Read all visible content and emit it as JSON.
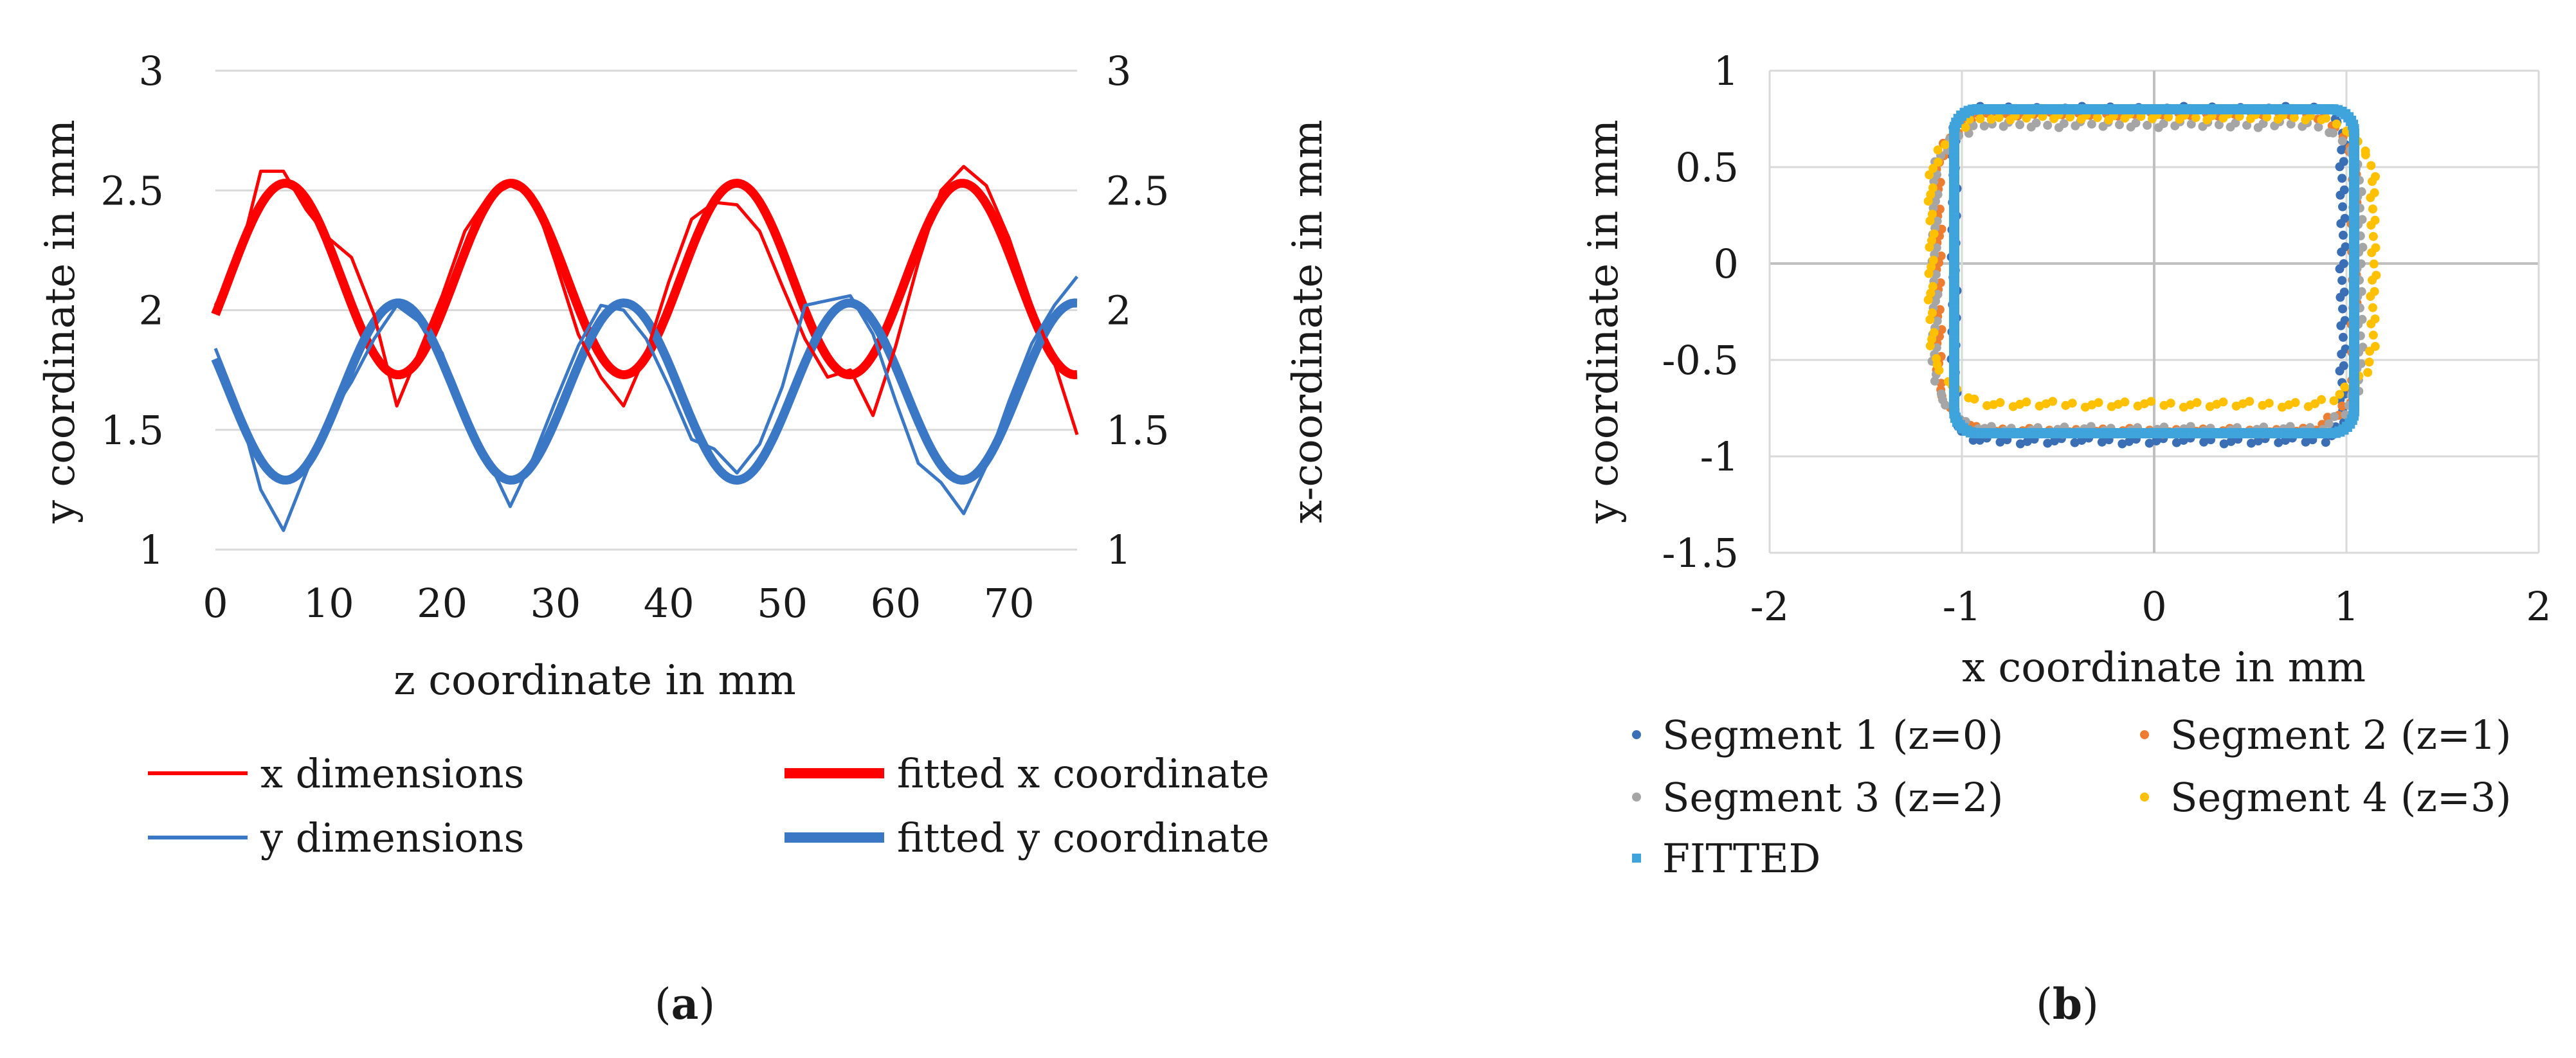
{
  "chart_data": [
    {
      "type": "line",
      "panel_label": "a",
      "xlabel": "z coordinate in mm",
      "ylabel": "y coordinate in mm",
      "y2label": "x-coordinate in mm",
      "xlim": [
        0,
        76
      ],
      "ylim": [
        1,
        3
      ],
      "y2lim": [
        1,
        3
      ],
      "xticks": [
        "0",
        "10",
        "20",
        "30",
        "40",
        "50",
        "60",
        "70"
      ],
      "yticks": [
        "1",
        "1.5",
        "2",
        "2.5",
        "3"
      ],
      "y2ticks": [
        "1",
        "1.5",
        "2",
        "2.5",
        "3"
      ],
      "grid": "horizontal",
      "legend_position": "bottom",
      "series": [
        {
          "name": "x dimensions",
          "color": "#ff0000",
          "style": "thin",
          "x": [
            0,
            2,
            4,
            6,
            8,
            10,
            12,
            14,
            16,
            18,
            20,
            22,
            24,
            26,
            28,
            30,
            32,
            34,
            36,
            38,
            40,
            42,
            44,
            46,
            48,
            50,
            52,
            54,
            56,
            58,
            60,
            62,
            64,
            66,
            68,
            70,
            72,
            74,
            76
          ],
          "values": [
            2.02,
            2.2,
            2.58,
            2.58,
            2.42,
            2.3,
            2.22,
            1.98,
            1.6,
            1.83,
            2.06,
            2.33,
            2.47,
            2.52,
            2.48,
            2.2,
            1.9,
            1.72,
            1.6,
            1.82,
            2.12,
            2.38,
            2.45,
            2.44,
            2.33,
            2.1,
            1.88,
            1.72,
            1.75,
            1.56,
            1.85,
            2.2,
            2.5,
            2.6,
            2.52,
            2.3,
            2.02,
            1.78,
            1.48
          ]
        },
        {
          "name": "y dimensions",
          "color": "#3a77c4",
          "style": "thin",
          "x": [
            0,
            2,
            4,
            6,
            8,
            10,
            12,
            14,
            16,
            18,
            20,
            22,
            24,
            26,
            28,
            30,
            32,
            34,
            36,
            38,
            40,
            42,
            44,
            46,
            48,
            50,
            52,
            54,
            56,
            58,
            60,
            62,
            64,
            66,
            68,
            70,
            72,
            74,
            76
          ],
          "values": [
            1.84,
            1.6,
            1.25,
            1.08,
            1.32,
            1.55,
            1.7,
            1.88,
            2.02,
            1.95,
            1.82,
            1.55,
            1.38,
            1.18,
            1.38,
            1.62,
            1.85,
            2.02,
            2.0,
            1.88,
            1.68,
            1.46,
            1.42,
            1.32,
            1.44,
            1.68,
            2.02,
            2.04,
            2.06,
            1.9,
            1.62,
            1.36,
            1.28,
            1.15,
            1.35,
            1.62,
            1.86,
            2.02,
            2.14
          ]
        },
        {
          "name": "fitted x coordinate",
          "color": "#ff0000",
          "style": "thick",
          "function": "2.13 + 0.40*sin(2*pi*(z-1.2)/19.9)"
        },
        {
          "name": "fitted y coordinate",
          "color": "#3a77c4",
          "style": "thick",
          "function": "1.66 - 0.37*sin(2*pi*(z-1.2)/19.9)"
        }
      ]
    },
    {
      "type": "scatter",
      "panel_label": "b",
      "xlabel": "x coordinate in mm",
      "ylabel": "y coordinate in mm",
      "xlim": [
        -2,
        2
      ],
      "ylim": [
        -1.5,
        1
      ],
      "xticks": [
        "-2",
        "-1",
        "0",
        "1",
        "2"
      ],
      "yticks": [
        "1",
        "0.5",
        "0",
        "-0.5",
        "-1",
        "-1.5"
      ],
      "grid": "both",
      "legend_position": "bottom",
      "series": [
        {
          "name": "Segment 1 (z=0)",
          "color": "#3a6fb5",
          "marker": "dot",
          "shape": {
            "left": -1.04,
            "right": 0.98,
            "top": 0.8,
            "bottom": -0.92,
            "corner_radius": 0.15
          }
        },
        {
          "name": "Segment 2 (z=1)",
          "color": "#ed7d31",
          "marker": "dot",
          "shape": {
            "left": -1.12,
            "right": 1.04,
            "top": 0.78,
            "bottom": -0.87,
            "corner_radius": 0.3
          }
        },
        {
          "name": "Segment 3 (z=2)",
          "color": "#a5a5a5",
          "marker": "dot",
          "shape": {
            "left": -1.14,
            "right": 1.07,
            "top": 0.72,
            "bottom": -0.86,
            "corner_radius": 0.3
          }
        },
        {
          "name": "Segment 4 (z=3)",
          "color": "#ffc000",
          "marker": "dot",
          "shape": {
            "left": -1.16,
            "right": 1.14,
            "top": 0.76,
            "bottom": -0.73,
            "corner_radius": 0.35
          }
        },
        {
          "name": "FITTED",
          "color": "#3fa3dc",
          "marker": "square",
          "shape": {
            "left": -1.04,
            "right": 1.04,
            "top": 0.8,
            "bottom": -0.88,
            "corner_radius": 0.12
          }
        }
      ]
    }
  ]
}
